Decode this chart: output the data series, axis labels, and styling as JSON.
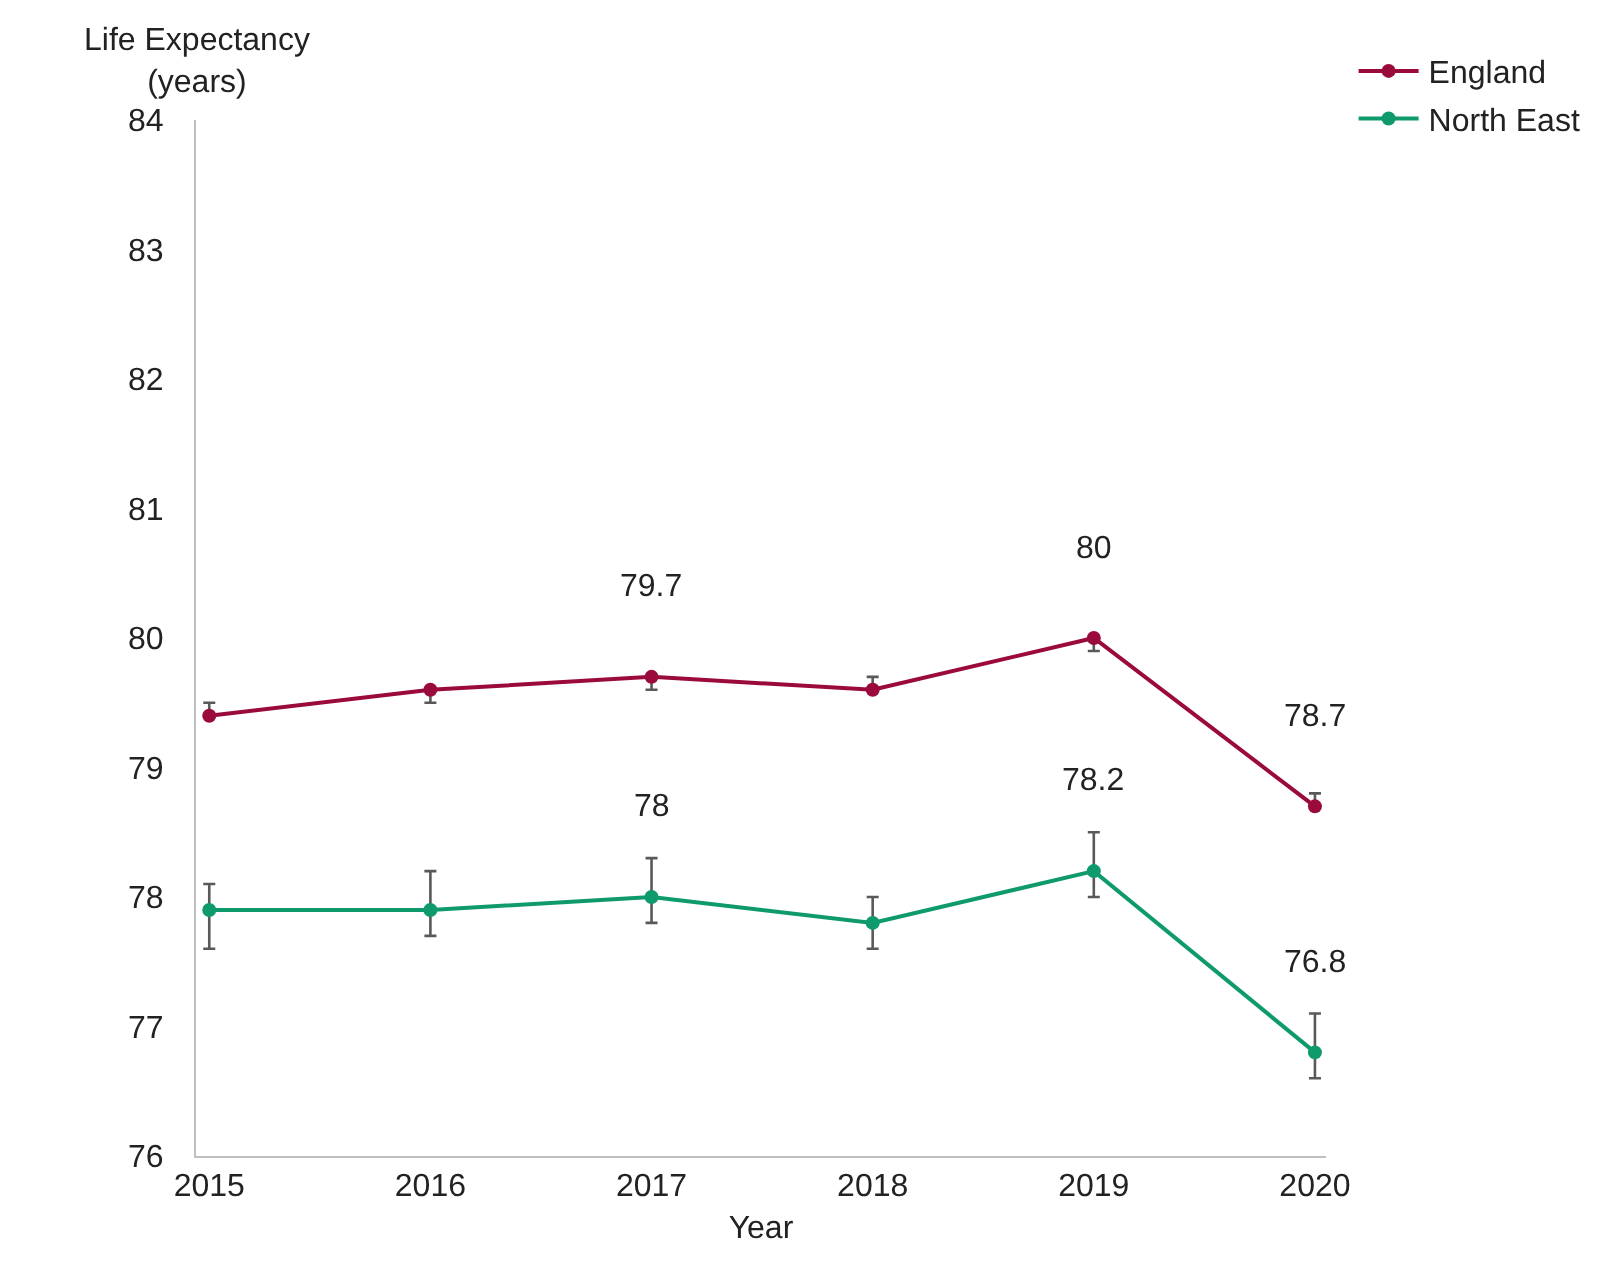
{
  "chart_data": {
    "type": "line",
    "xlabel": "Year",
    "ylabel": "Life Expectancy (years)",
    "categories": [
      "2015",
      "2016",
      "2017",
      "2018",
      "2019",
      "2020"
    ],
    "series": [
      {
        "name": "England",
        "color": "#9b0a3c",
        "values": [
          79.4,
          79.6,
          79.7,
          79.6,
          80,
          78.7
        ],
        "errors": [
          [
            79.4,
            79.5
          ],
          [
            79.5,
            79.6
          ],
          [
            79.6,
            79.7
          ],
          [
            79.6,
            79.7
          ],
          [
            79.9,
            80
          ],
          [
            78.7,
            78.8
          ]
        ],
        "value_labels": [
          null,
          null,
          "79.7",
          null,
          "80",
          "78.7"
        ]
      },
      {
        "name": "North East",
        "color": "#0f9a6e",
        "values": [
          77.9,
          77.9,
          78,
          77.8,
          78.2,
          76.8
        ],
        "errors": [
          [
            77.6,
            78.1
          ],
          [
            77.7,
            78.2
          ],
          [
            77.8,
            78.3
          ],
          [
            77.6,
            78.0
          ],
          [
            78.0,
            78.5
          ],
          [
            76.6,
            77.1
          ]
        ],
        "value_labels": [
          null,
          null,
          "78",
          null,
          "78.2",
          "76.8"
        ]
      }
    ],
    "ylim": [
      76,
      84
    ],
    "yticks": [
      76,
      77,
      78,
      79,
      80,
      81,
      82,
      83,
      84
    ],
    "grid": false,
    "legend": "top right",
    "marker": "circle",
    "line_style": "solid"
  }
}
